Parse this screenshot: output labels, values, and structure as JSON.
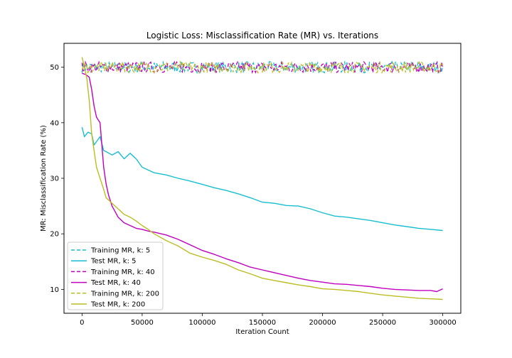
{
  "chart_data": {
    "type": "line",
    "title": "Logistic Loss: Misclassification Rate (MR) vs. Iterations",
    "xlabel": "Iteration Count",
    "ylabel": "MR: Misclassification Rate (%)",
    "xlim": [
      -15000,
      315000
    ],
    "ylim": [
      5.7,
      54.3
    ],
    "xticks": [
      0,
      50000,
      100000,
      150000,
      200000,
      250000,
      300000
    ],
    "yticks": [
      10,
      20,
      30,
      40,
      50
    ],
    "grid": false,
    "legend_position": "lower-left",
    "series": [
      {
        "name": "Training MR, k: 5",
        "color": "#17becf",
        "style": "dashed",
        "band": [
          49.0,
          51.0
        ],
        "x": [
          0,
          300000
        ]
      },
      {
        "name": "Test MR, k: 5",
        "color": "#17becf",
        "style": "solid",
        "x": [
          0,
          2000,
          5000,
          8000,
          10000,
          15000,
          18000,
          20000,
          25000,
          30000,
          35000,
          40000,
          45000,
          50000,
          60000,
          70000,
          80000,
          90000,
          100000,
          110000,
          120000,
          130000,
          140000,
          150000,
          160000,
          170000,
          180000,
          190000,
          200000,
          210000,
          220000,
          230000,
          240000,
          250000,
          260000,
          270000,
          280000,
          290000,
          300000
        ],
        "y": [
          39.2,
          37.5,
          38.3,
          38.0,
          36.0,
          37.5,
          35.0,
          34.8,
          34.2,
          34.8,
          33.5,
          34.5,
          33.5,
          32.0,
          31.0,
          30.6,
          30.0,
          29.5,
          28.9,
          28.3,
          27.8,
          27.2,
          26.5,
          25.7,
          25.5,
          25.1,
          25.0,
          24.5,
          23.8,
          23.2,
          23.0,
          22.7,
          22.4,
          22.0,
          21.6,
          21.3,
          21.0,
          20.8,
          20.6
        ]
      },
      {
        "name": "Training MR, k: 40",
        "color": "#bf00bf",
        "style": "dashed",
        "band": [
          49.0,
          51.0
        ],
        "x": [
          0,
          300000
        ]
      },
      {
        "name": "Test MR, k: 40",
        "color": "#bf00bf",
        "style": "solid",
        "x": [
          0,
          3000,
          6000,
          8000,
          10000,
          12000,
          15000,
          18000,
          20000,
          22000,
          25000,
          30000,
          35000,
          40000,
          45000,
          50000,
          55000,
          60000,
          70000,
          80000,
          90000,
          100000,
          110000,
          120000,
          130000,
          140000,
          150000,
          160000,
          170000,
          180000,
          190000,
          200000,
          210000,
          220000,
          230000,
          240000,
          250000,
          260000,
          270000,
          280000,
          290000,
          295000,
          300000
        ],
        "y": [
          48.9,
          48.7,
          48.2,
          46.0,
          43.0,
          41.0,
          40.0,
          32.0,
          29.0,
          27.0,
          25.0,
          23.0,
          22.0,
          21.5,
          21.0,
          20.8,
          20.5,
          20.3,
          19.8,
          19.0,
          18.0,
          17.0,
          16.3,
          15.5,
          14.8,
          14.0,
          13.5,
          13.0,
          12.5,
          12.0,
          11.6,
          11.3,
          11.0,
          10.9,
          10.7,
          10.5,
          10.2,
          10.0,
          9.9,
          9.8,
          9.8,
          9.6,
          10.1
        ]
      },
      {
        "name": "Training MR, k: 200",
        "color": "#bcbd22",
        "style": "dashed",
        "band": [
          49.0,
          51.0
        ],
        "x": [
          0,
          300000
        ]
      },
      {
        "name": "Test MR, k: 200",
        "color": "#bcbd22",
        "style": "solid",
        "x": [
          0,
          2000,
          4000,
          6000,
          8000,
          10000,
          12000,
          15000,
          18000,
          20000,
          25000,
          30000,
          35000,
          40000,
          45000,
          50000,
          55000,
          60000,
          70000,
          80000,
          90000,
          100000,
          110000,
          120000,
          130000,
          140000,
          150000,
          160000,
          170000,
          180000,
          190000,
          200000,
          210000,
          220000,
          230000,
          240000,
          250000,
          260000,
          270000,
          280000,
          290000,
          300000
        ],
        "y": [
          51.8,
          50.0,
          48.0,
          44.0,
          38.0,
          35.0,
          32.0,
          30.0,
          28.0,
          26.5,
          25.5,
          24.5,
          23.5,
          23.0,
          22.3,
          21.5,
          20.8,
          20.0,
          18.8,
          17.8,
          16.5,
          15.8,
          15.2,
          14.5,
          13.5,
          12.8,
          12.0,
          11.6,
          11.2,
          10.8,
          10.5,
          10.1,
          10.0,
          9.8,
          9.6,
          9.3,
          9.0,
          8.8,
          8.6,
          8.4,
          8.3,
          8.2
        ]
      }
    ]
  }
}
